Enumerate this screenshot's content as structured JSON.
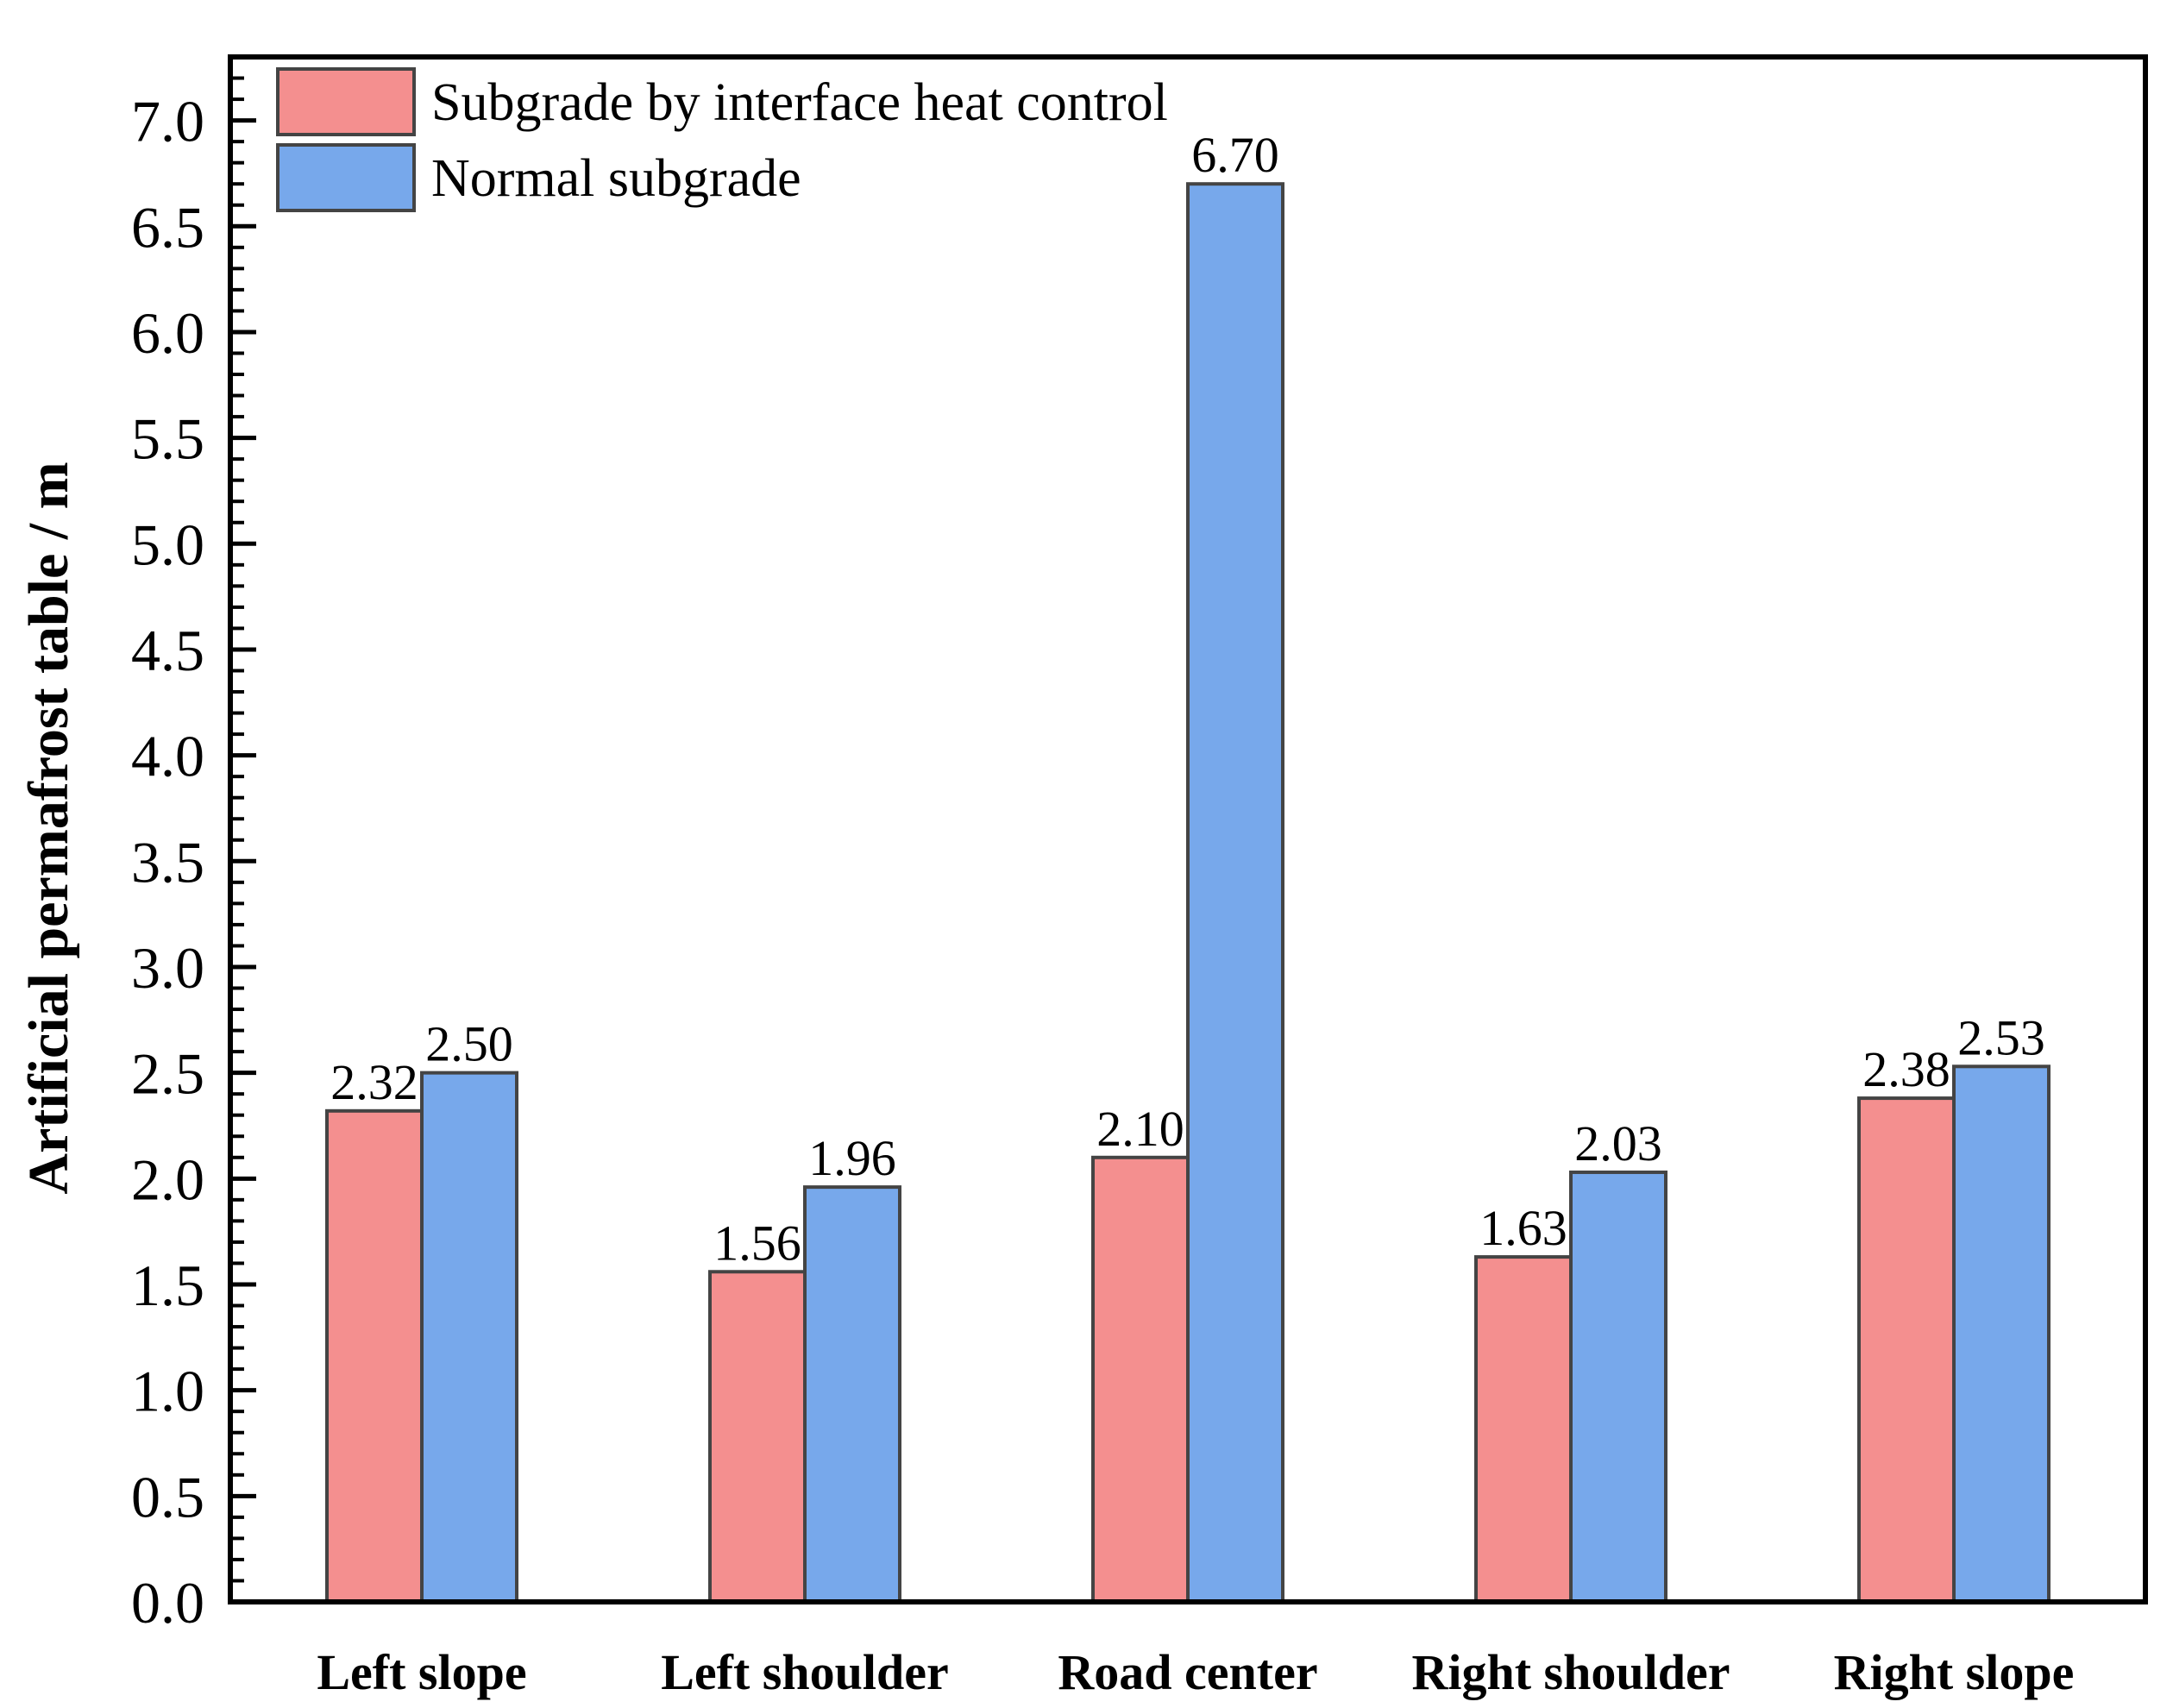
{
  "chart_data": {
    "type": "bar",
    "title": "",
    "xlabel": "",
    "ylabel": "Artificial permafrost table / m",
    "ylim": [
      0,
      7.3
    ],
    "yticks": [
      "0.0",
      "0.5",
      "1.0",
      "1.5",
      "2.0",
      "2.5",
      "3.0",
      "3.5",
      "4.0",
      "4.5",
      "5.0",
      "5.5",
      "6.0",
      "6.5",
      "7.0"
    ],
    "categories": [
      "Left slope",
      "Left shoulder",
      "Road center",
      "Right shoulder",
      "Right slope"
    ],
    "series": [
      {
        "name": "Subgrade by interface heat control",
        "color": "#F48F8F",
        "values": [
          2.32,
          1.56,
          2.1,
          1.63,
          2.38
        ],
        "labels": [
          "2.32",
          "1.56",
          "2.10",
          "1.63",
          "2.38"
        ]
      },
      {
        "name": "Normal subgrade",
        "color": "#77A8EB",
        "values": [
          2.5,
          1.96,
          6.7,
          2.03,
          2.53
        ],
        "labels": [
          "2.50",
          "1.96",
          "6.70",
          "2.03",
          "2.53"
        ]
      }
    ],
    "legend_position": "top-left",
    "grid": false
  }
}
